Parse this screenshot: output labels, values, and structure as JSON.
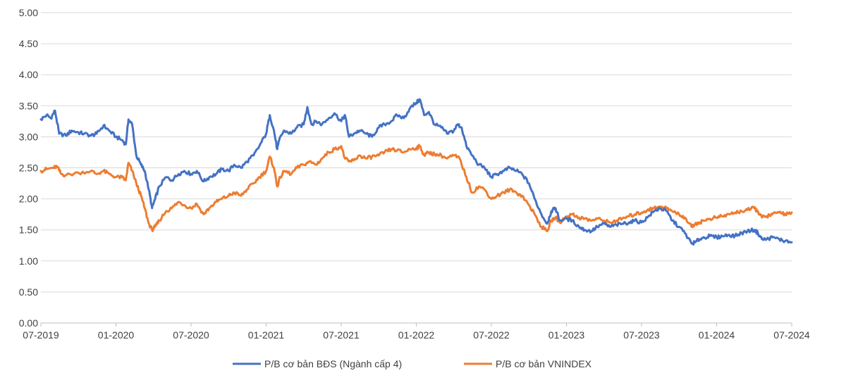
{
  "chart_data": {
    "type": "line",
    "title": "",
    "xlabel": "",
    "ylabel": "",
    "ylim": [
      0,
      5
    ],
    "yticks": [
      "0.00",
      "0.50",
      "1.00",
      "1.50",
      "2.00",
      "2.50",
      "3.00",
      "3.50",
      "4.00",
      "4.50",
      "5.00"
    ],
    "xlim": [
      "2019-07",
      "2024-07"
    ],
    "xticks": [
      "07-2019",
      "01-2020",
      "07-2020",
      "01-2021",
      "07-2021",
      "01-2022",
      "07-2022",
      "01-2023",
      "07-2023",
      "01-2024",
      "07-2024"
    ],
    "grid": "horizontal",
    "legend_position": "bottom",
    "series": [
      {
        "name": "P/B cơ bản BĐS (Ngành cấp 4)",
        "color": "#4472C4",
        "points": [
          [
            "2019-07-01",
            3.28
          ],
          [
            "2019-07-15",
            3.35
          ],
          [
            "2019-07-25",
            3.3
          ],
          [
            "2019-08-05",
            3.42
          ],
          [
            "2019-08-15",
            3.05
          ],
          [
            "2019-09-01",
            3.02
          ],
          [
            "2019-09-15",
            3.1
          ],
          [
            "2019-10-01",
            3.07
          ],
          [
            "2019-10-15",
            3.05
          ],
          [
            "2019-11-01",
            3.02
          ],
          [
            "2019-11-15",
            3.05
          ],
          [
            "2019-12-01",
            3.18
          ],
          [
            "2019-12-15",
            3.1
          ],
          [
            "2020-01-01",
            3.0
          ],
          [
            "2020-01-15",
            2.95
          ],
          [
            "2020-01-25",
            2.88
          ],
          [
            "2020-02-01",
            3.28
          ],
          [
            "2020-02-10",
            3.2
          ],
          [
            "2020-02-20",
            2.7
          ],
          [
            "2020-03-01",
            2.55
          ],
          [
            "2020-03-10",
            2.45
          ],
          [
            "2020-03-20",
            2.15
          ],
          [
            "2020-03-28",
            1.85
          ],
          [
            "2020-04-05",
            2.0
          ],
          [
            "2020-04-15",
            2.2
          ],
          [
            "2020-05-01",
            2.35
          ],
          [
            "2020-05-15",
            2.3
          ],
          [
            "2020-06-01",
            2.4
          ],
          [
            "2020-06-15",
            2.45
          ],
          [
            "2020-07-01",
            2.4
          ],
          [
            "2020-07-15",
            2.45
          ],
          [
            "2020-08-01",
            2.28
          ],
          [
            "2020-08-15",
            2.35
          ],
          [
            "2020-09-01",
            2.4
          ],
          [
            "2020-09-15",
            2.48
          ],
          [
            "2020-10-01",
            2.45
          ],
          [
            "2020-10-15",
            2.55
          ],
          [
            "2020-11-01",
            2.5
          ],
          [
            "2020-11-15",
            2.6
          ],
          [
            "2020-12-01",
            2.7
          ],
          [
            "2020-12-15",
            2.85
          ],
          [
            "2021-01-01",
            3.05
          ],
          [
            "2021-01-10",
            3.35
          ],
          [
            "2021-01-20",
            3.1
          ],
          [
            "2021-01-28",
            2.8
          ],
          [
            "2021-02-05",
            3.0
          ],
          [
            "2021-02-15",
            3.1
          ],
          [
            "2021-03-01",
            3.05
          ],
          [
            "2021-03-15",
            3.15
          ],
          [
            "2021-04-01",
            3.2
          ],
          [
            "2021-04-10",
            3.48
          ],
          [
            "2021-04-20",
            3.2
          ],
          [
            "2021-05-01",
            3.25
          ],
          [
            "2021-05-15",
            3.2
          ],
          [
            "2021-06-01",
            3.3
          ],
          [
            "2021-06-15",
            3.38
          ],
          [
            "2021-07-01",
            3.25
          ],
          [
            "2021-07-10",
            3.35
          ],
          [
            "2021-07-20",
            3.0
          ],
          [
            "2021-08-01",
            3.05
          ],
          [
            "2021-08-15",
            3.1
          ],
          [
            "2021-09-01",
            3.05
          ],
          [
            "2021-09-15",
            3.0
          ],
          [
            "2021-10-01",
            3.15
          ],
          [
            "2021-10-15",
            3.2
          ],
          [
            "2021-11-01",
            3.25
          ],
          [
            "2021-11-15",
            3.35
          ],
          [
            "2021-12-01",
            3.3
          ],
          [
            "2021-12-15",
            3.45
          ],
          [
            "2022-01-01",
            3.55
          ],
          [
            "2022-01-10",
            3.6
          ],
          [
            "2022-01-20",
            3.35
          ],
          [
            "2022-02-01",
            3.4
          ],
          [
            "2022-02-15",
            3.2
          ],
          [
            "2022-03-01",
            3.15
          ],
          [
            "2022-03-15",
            3.05
          ],
          [
            "2022-04-01",
            3.1
          ],
          [
            "2022-04-10",
            3.2
          ],
          [
            "2022-04-20",
            3.15
          ],
          [
            "2022-05-01",
            2.85
          ],
          [
            "2022-05-15",
            2.7
          ],
          [
            "2022-06-01",
            2.55
          ],
          [
            "2022-06-15",
            2.5
          ],
          [
            "2022-07-01",
            2.35
          ],
          [
            "2022-07-15",
            2.4
          ],
          [
            "2022-08-01",
            2.45
          ],
          [
            "2022-08-15",
            2.5
          ],
          [
            "2022-09-01",
            2.45
          ],
          [
            "2022-09-15",
            2.4
          ],
          [
            "2022-10-01",
            2.25
          ],
          [
            "2022-10-15",
            2.0
          ],
          [
            "2022-11-01",
            1.75
          ],
          [
            "2022-11-15",
            1.6
          ],
          [
            "2022-11-25",
            1.8
          ],
          [
            "2022-12-05",
            1.85
          ],
          [
            "2022-12-15",
            1.65
          ],
          [
            "2023-01-01",
            1.68
          ],
          [
            "2023-01-15",
            1.65
          ],
          [
            "2023-02-01",
            1.55
          ],
          [
            "2023-02-15",
            1.5
          ],
          [
            "2023-03-01",
            1.48
          ],
          [
            "2023-03-15",
            1.55
          ],
          [
            "2023-04-01",
            1.6
          ],
          [
            "2023-04-15",
            1.55
          ],
          [
            "2023-05-01",
            1.58
          ],
          [
            "2023-05-15",
            1.6
          ],
          [
            "2023-06-01",
            1.62
          ],
          [
            "2023-06-15",
            1.65
          ],
          [
            "2023-07-01",
            1.62
          ],
          [
            "2023-07-15",
            1.7
          ],
          [
            "2023-08-01",
            1.8
          ],
          [
            "2023-08-15",
            1.85
          ],
          [
            "2023-09-01",
            1.8
          ],
          [
            "2023-09-15",
            1.65
          ],
          [
            "2023-10-01",
            1.55
          ],
          [
            "2023-10-15",
            1.45
          ],
          [
            "2023-11-01",
            1.28
          ],
          [
            "2023-11-10",
            1.3
          ],
          [
            "2023-11-20",
            1.35
          ],
          [
            "2023-12-01",
            1.38
          ],
          [
            "2023-12-15",
            1.4
          ],
          [
            "2024-01-01",
            1.38
          ],
          [
            "2024-01-15",
            1.4
          ],
          [
            "2024-02-01",
            1.42
          ],
          [
            "2024-02-15",
            1.4
          ],
          [
            "2024-03-01",
            1.45
          ],
          [
            "2024-03-15",
            1.48
          ],
          [
            "2024-04-01",
            1.5
          ],
          [
            "2024-04-10",
            1.45
          ],
          [
            "2024-04-20",
            1.35
          ],
          [
            "2024-05-01",
            1.35
          ],
          [
            "2024-05-15",
            1.38
          ],
          [
            "2024-06-01",
            1.35
          ],
          [
            "2024-06-15",
            1.32
          ],
          [
            "2024-07-01",
            1.3
          ]
        ]
      },
      {
        "name": "P/B cơ bản VNINDEX",
        "color": "#ED7D31",
        "points": [
          [
            "2019-07-01",
            2.45
          ],
          [
            "2019-07-15",
            2.48
          ],
          [
            "2019-08-01",
            2.5
          ],
          [
            "2019-08-10",
            2.52
          ],
          [
            "2019-08-20",
            2.4
          ],
          [
            "2019-09-01",
            2.38
          ],
          [
            "2019-10-01",
            2.42
          ],
          [
            "2019-11-01",
            2.45
          ],
          [
            "2019-11-15",
            2.4
          ],
          [
            "2019-12-01",
            2.45
          ],
          [
            "2019-12-15",
            2.4
          ],
          [
            "2020-01-01",
            2.35
          ],
          [
            "2020-01-15",
            2.35
          ],
          [
            "2020-01-25",
            2.3
          ],
          [
            "2020-02-01",
            2.58
          ],
          [
            "2020-02-10",
            2.45
          ],
          [
            "2020-02-20",
            2.25
          ],
          [
            "2020-03-01",
            2.05
          ],
          [
            "2020-03-10",
            1.85
          ],
          [
            "2020-03-20",
            1.6
          ],
          [
            "2020-03-28",
            1.5
          ],
          [
            "2020-04-05",
            1.55
          ],
          [
            "2020-04-15",
            1.65
          ],
          [
            "2020-05-01",
            1.8
          ],
          [
            "2020-05-15",
            1.85
          ],
          [
            "2020-06-01",
            1.95
          ],
          [
            "2020-06-15",
            1.9
          ],
          [
            "2020-07-01",
            1.85
          ],
          [
            "2020-07-15",
            1.92
          ],
          [
            "2020-08-01",
            1.75
          ],
          [
            "2020-08-15",
            1.85
          ],
          [
            "2020-09-01",
            1.95
          ],
          [
            "2020-09-15",
            2.0
          ],
          [
            "2020-10-01",
            2.05
          ],
          [
            "2020-10-15",
            2.1
          ],
          [
            "2020-11-01",
            2.05
          ],
          [
            "2020-11-15",
            2.15
          ],
          [
            "2020-12-01",
            2.25
          ],
          [
            "2020-12-15",
            2.35
          ],
          [
            "2021-01-01",
            2.45
          ],
          [
            "2021-01-10",
            2.68
          ],
          [
            "2021-01-20",
            2.5
          ],
          [
            "2021-01-28",
            2.2
          ],
          [
            "2021-02-05",
            2.35
          ],
          [
            "2021-02-15",
            2.45
          ],
          [
            "2021-03-01",
            2.4
          ],
          [
            "2021-03-15",
            2.5
          ],
          [
            "2021-04-01",
            2.55
          ],
          [
            "2021-04-15",
            2.6
          ],
          [
            "2021-05-01",
            2.55
          ],
          [
            "2021-05-15",
            2.65
          ],
          [
            "2021-06-01",
            2.75
          ],
          [
            "2021-06-15",
            2.8
          ],
          [
            "2021-07-01",
            2.85
          ],
          [
            "2021-07-10",
            2.65
          ],
          [
            "2021-07-20",
            2.6
          ],
          [
            "2021-08-01",
            2.62
          ],
          [
            "2021-08-15",
            2.7
          ],
          [
            "2021-09-01",
            2.65
          ],
          [
            "2021-09-15",
            2.68
          ],
          [
            "2021-10-01",
            2.7
          ],
          [
            "2021-10-15",
            2.75
          ],
          [
            "2021-11-01",
            2.8
          ],
          [
            "2021-11-15",
            2.78
          ],
          [
            "2021-12-01",
            2.75
          ],
          [
            "2021-12-15",
            2.8
          ],
          [
            "2022-01-01",
            2.82
          ],
          [
            "2022-01-10",
            2.85
          ],
          [
            "2022-01-20",
            2.7
          ],
          [
            "2022-02-01",
            2.75
          ],
          [
            "2022-02-15",
            2.72
          ],
          [
            "2022-03-01",
            2.7
          ],
          [
            "2022-03-15",
            2.65
          ],
          [
            "2022-04-01",
            2.7
          ],
          [
            "2022-04-15",
            2.65
          ],
          [
            "2022-05-01",
            2.35
          ],
          [
            "2022-05-15",
            2.1
          ],
          [
            "2022-06-01",
            2.2
          ],
          [
            "2022-06-15",
            2.15
          ],
          [
            "2022-07-01",
            2.0
          ],
          [
            "2022-07-15",
            2.05
          ],
          [
            "2022-08-01",
            2.1
          ],
          [
            "2022-08-15",
            2.15
          ],
          [
            "2022-09-01",
            2.1
          ],
          [
            "2022-09-15",
            2.05
          ],
          [
            "2022-10-01",
            1.9
          ],
          [
            "2022-10-15",
            1.75
          ],
          [
            "2022-11-01",
            1.55
          ],
          [
            "2022-11-15",
            1.48
          ],
          [
            "2022-11-25",
            1.65
          ],
          [
            "2022-12-05",
            1.7
          ],
          [
            "2022-12-15",
            1.62
          ],
          [
            "2023-01-01",
            1.72
          ],
          [
            "2023-01-15",
            1.75
          ],
          [
            "2023-02-01",
            1.7
          ],
          [
            "2023-02-15",
            1.68
          ],
          [
            "2023-03-01",
            1.65
          ],
          [
            "2023-03-15",
            1.68
          ],
          [
            "2023-04-01",
            1.65
          ],
          [
            "2023-04-15",
            1.62
          ],
          [
            "2023-05-01",
            1.65
          ],
          [
            "2023-05-15",
            1.68
          ],
          [
            "2023-06-01",
            1.72
          ],
          [
            "2023-06-15",
            1.75
          ],
          [
            "2023-07-01",
            1.78
          ],
          [
            "2023-07-15",
            1.82
          ],
          [
            "2023-08-01",
            1.85
          ],
          [
            "2023-08-15",
            1.88
          ],
          [
            "2023-09-01",
            1.85
          ],
          [
            "2023-09-15",
            1.8
          ],
          [
            "2023-10-01",
            1.75
          ],
          [
            "2023-10-15",
            1.7
          ],
          [
            "2023-11-01",
            1.55
          ],
          [
            "2023-11-10",
            1.6
          ],
          [
            "2023-11-20",
            1.62
          ],
          [
            "2023-12-01",
            1.65
          ],
          [
            "2023-12-15",
            1.68
          ],
          [
            "2024-01-01",
            1.7
          ],
          [
            "2024-01-15",
            1.72
          ],
          [
            "2024-02-01",
            1.75
          ],
          [
            "2024-02-15",
            1.78
          ],
          [
            "2024-03-01",
            1.8
          ],
          [
            "2024-03-15",
            1.82
          ],
          [
            "2024-04-01",
            1.85
          ],
          [
            "2024-04-10",
            1.8
          ],
          [
            "2024-04-20",
            1.7
          ],
          [
            "2024-05-01",
            1.72
          ],
          [
            "2024-05-15",
            1.75
          ],
          [
            "2024-06-01",
            1.78
          ],
          [
            "2024-06-15",
            1.76
          ],
          [
            "2024-07-01",
            1.78
          ]
        ]
      }
    ]
  }
}
